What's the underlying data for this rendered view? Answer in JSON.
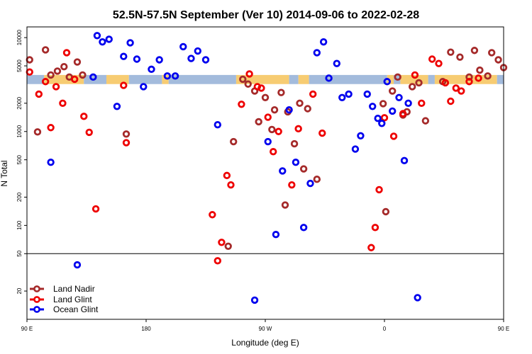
{
  "chart_data": {
    "type": "scatter",
    "title": "52.5N-57.5N September (Ver 10)   2014-09-06 to 2022-02-28",
    "xlabel": "Longitude (deg E)",
    "ylabel": "N Total",
    "xlim": [
      90,
      450
    ],
    "ylim_log": [
      10,
      13000
    ],
    "log_y": true,
    "x_ticks": [
      {
        "value": 90,
        "label": "90 E"
      },
      {
        "value": 180,
        "label": "180"
      },
      {
        "value": 270,
        "label": "90 W"
      },
      {
        "value": 360,
        "label": "0"
      },
      {
        "value": 450,
        "label": "90 E"
      }
    ],
    "y_ticks": [
      {
        "value": 20,
        "label": "20"
      },
      {
        "value": 50,
        "label": "50"
      },
      {
        "value": 100,
        "label": "100"
      },
      {
        "value": 200,
        "label": "200"
      },
      {
        "value": 500,
        "label": "500"
      },
      {
        "value": 1000,
        "label": "1000"
      },
      {
        "value": 2000,
        "label": "2000"
      },
      {
        "value": 5000,
        "label": "5000"
      },
      {
        "value": 10000,
        "label": "10000"
      }
    ],
    "reference_line": 50,
    "colors": {
      "land_nadir": "#a52a2a",
      "land_glint": "#ee0000",
      "ocean_glint": "#0000ee",
      "ocean_band": "#a3bbdc",
      "land_band": "#f7cc72"
    },
    "legend_position": "bottom-left",
    "series": [
      {
        "name": "Land Nadir",
        "color": "#a52a2a",
        "points": [
          {
            "x": 92,
            "y": 5800
          },
          {
            "x": 98,
            "y": 990
          },
          {
            "x": 104,
            "y": 7400
          },
          {
            "x": 108,
            "y": 4000
          },
          {
            "x": 113,
            "y": 4400
          },
          {
            "x": 118,
            "y": 4900
          },
          {
            "x": 122,
            "y": 3800
          },
          {
            "x": 128,
            "y": 5500
          },
          {
            "x": 132,
            "y": 4000
          },
          {
            "x": 165,
            "y": 940
          },
          {
            "x": 242,
            "y": 60
          },
          {
            "x": 246,
            "y": 780
          },
          {
            "x": 253,
            "y": 3600
          },
          {
            "x": 257,
            "y": 3200
          },
          {
            "x": 262,
            "y": 2700
          },
          {
            "x": 265,
            "y": 1270
          },
          {
            "x": 270,
            "y": 2300
          },
          {
            "x": 275,
            "y": 1050
          },
          {
            "x": 277,
            "y": 1700
          },
          {
            "x": 282,
            "y": 2600
          },
          {
            "x": 285,
            "y": 165
          },
          {
            "x": 287,
            "y": 1620
          },
          {
            "x": 292,
            "y": 740
          },
          {
            "x": 296,
            "y": 2000
          },
          {
            "x": 299,
            "y": 400
          },
          {
            "x": 302,
            "y": 1750
          },
          {
            "x": 309,
            "y": 310
          },
          {
            "x": 359,
            "y": 1980
          },
          {
            "x": 361,
            "y": 140
          },
          {
            "x": 366,
            "y": 2700
          },
          {
            "x": 370,
            "y": 3800
          },
          {
            "x": 374,
            "y": 1500
          },
          {
            "x": 377,
            "y": 1620
          },
          {
            "x": 381,
            "y": 3000
          },
          {
            "x": 386,
            "y": 3300
          },
          {
            "x": 391,
            "y": 1300
          },
          {
            "x": 404,
            "y": 3400
          },
          {
            "x": 410,
            "y": 7000
          },
          {
            "x": 417,
            "y": 6200
          },
          {
            "x": 424,
            "y": 3800
          },
          {
            "x": 428,
            "y": 7300
          },
          {
            "x": 432,
            "y": 4500
          },
          {
            "x": 438,
            "y": 3900
          },
          {
            "x": 441,
            "y": 6900
          },
          {
            "x": 446,
            "y": 5800
          },
          {
            "x": 450,
            "y": 4800
          }
        ]
      },
      {
        "name": "Land Glint",
        "color": "#ee0000",
        "points": [
          {
            "x": 92,
            "y": 4300
          },
          {
            "x": 99,
            "y": 2500
          },
          {
            "x": 104,
            "y": 3400
          },
          {
            "x": 108,
            "y": 1100
          },
          {
            "x": 112,
            "y": 3000
          },
          {
            "x": 117,
            "y": 2000
          },
          {
            "x": 120,
            "y": 6900
          },
          {
            "x": 126,
            "y": 3600
          },
          {
            "x": 133,
            "y": 1450
          },
          {
            "x": 137,
            "y": 980
          },
          {
            "x": 142,
            "y": 150
          },
          {
            "x": 163,
            "y": 3100
          },
          {
            "x": 165,
            "y": 760
          },
          {
            "x": 230,
            "y": 130
          },
          {
            "x": 234,
            "y": 42
          },
          {
            "x": 237,
            "y": 66
          },
          {
            "x": 241,
            "y": 340
          },
          {
            "x": 244,
            "y": 270
          },
          {
            "x": 252,
            "y": 1950
          },
          {
            "x": 258,
            "y": 4100
          },
          {
            "x": 264,
            "y": 3000
          },
          {
            "x": 267,
            "y": 2900
          },
          {
            "x": 272,
            "y": 1420
          },
          {
            "x": 276,
            "y": 610
          },
          {
            "x": 280,
            "y": 1000
          },
          {
            "x": 290,
            "y": 270
          },
          {
            "x": 295,
            "y": 1070
          },
          {
            "x": 306,
            "y": 2500
          },
          {
            "x": 313,
            "y": 960
          },
          {
            "x": 350,
            "y": 58
          },
          {
            "x": 353,
            "y": 95
          },
          {
            "x": 356,
            "y": 240
          },
          {
            "x": 360,
            "y": 1400
          },
          {
            "x": 367,
            "y": 890
          },
          {
            "x": 374,
            "y": 1550
          },
          {
            "x": 383,
            "y": 4000
          },
          {
            "x": 388,
            "y": 2000
          },
          {
            "x": 396,
            "y": 5900
          },
          {
            "x": 401,
            "y": 5300
          },
          {
            "x": 406,
            "y": 3300
          },
          {
            "x": 410,
            "y": 2100
          },
          {
            "x": 414,
            "y": 2900
          },
          {
            "x": 418,
            "y": 2700
          },
          {
            "x": 424,
            "y": 3400
          },
          {
            "x": 431,
            "y": 3700
          }
        ]
      },
      {
        "name": "Ocean Glint",
        "color": "#0000ee",
        "points": [
          {
            "x": 108,
            "y": 470
          },
          {
            "x": 128,
            "y": 38
          },
          {
            "x": 140,
            "y": 3800
          },
          {
            "x": 143,
            "y": 10500
          },
          {
            "x": 147,
            "y": 9000
          },
          {
            "x": 152,
            "y": 9600
          },
          {
            "x": 158,
            "y": 1850
          },
          {
            "x": 163,
            "y": 6300
          },
          {
            "x": 168,
            "y": 8800
          },
          {
            "x": 173,
            "y": 5900
          },
          {
            "x": 178,
            "y": 3000
          },
          {
            "x": 184,
            "y": 4600
          },
          {
            "x": 190,
            "y": 5800
          },
          {
            "x": 196,
            "y": 3900
          },
          {
            "x": 202,
            "y": 3900
          },
          {
            "x": 208,
            "y": 8000
          },
          {
            "x": 214,
            "y": 6000
          },
          {
            "x": 219,
            "y": 7200
          },
          {
            "x": 225,
            "y": 5800
          },
          {
            "x": 234,
            "y": 1180
          },
          {
            "x": 262,
            "y": 16
          },
          {
            "x": 272,
            "y": 780
          },
          {
            "x": 278,
            "y": 80
          },
          {
            "x": 283,
            "y": 380
          },
          {
            "x": 288,
            "y": 1700
          },
          {
            "x": 293,
            "y": 470
          },
          {
            "x": 299,
            "y": 95
          },
          {
            "x": 304,
            "y": 280
          },
          {
            "x": 309,
            "y": 6900
          },
          {
            "x": 314,
            "y": 9000
          },
          {
            "x": 318,
            "y": 3700
          },
          {
            "x": 324,
            "y": 5300
          },
          {
            "x": 328,
            "y": 2300
          },
          {
            "x": 333,
            "y": 2500
          },
          {
            "x": 338,
            "y": 650
          },
          {
            "x": 342,
            "y": 900
          },
          {
            "x": 347,
            "y": 2500
          },
          {
            "x": 351,
            "y": 1850
          },
          {
            "x": 355,
            "y": 1380
          },
          {
            "x": 358,
            "y": 1220
          },
          {
            "x": 362,
            "y": 3400
          },
          {
            "x": 366,
            "y": 1650
          },
          {
            "x": 371,
            "y": 2300
          },
          {
            "x": 375,
            "y": 490
          },
          {
            "x": 378,
            "y": 2000
          },
          {
            "x": 385,
            "y": 17
          }
        ]
      }
    ],
    "band_segments": [
      {
        "from": 90,
        "to": 103,
        "kind": "ocean"
      },
      {
        "from": 103,
        "to": 133,
        "kind": "land"
      },
      {
        "from": 133,
        "to": 150,
        "kind": "ocean"
      },
      {
        "from": 150,
        "to": 167,
        "kind": "land"
      },
      {
        "from": 167,
        "to": 192,
        "kind": "ocean"
      },
      {
        "from": 192,
        "to": 197,
        "kind": "land"
      },
      {
        "from": 197,
        "to": 248,
        "kind": "ocean"
      },
      {
        "from": 248,
        "to": 288,
        "kind": "land"
      },
      {
        "from": 288,
        "to": 295,
        "kind": "ocean"
      },
      {
        "from": 295,
        "to": 303,
        "kind": "land"
      },
      {
        "from": 303,
        "to": 362,
        "kind": "ocean"
      },
      {
        "from": 362,
        "to": 367,
        "kind": "land"
      },
      {
        "from": 367,
        "to": 372,
        "kind": "ocean"
      },
      {
        "from": 372,
        "to": 393,
        "kind": "land"
      },
      {
        "from": 393,
        "to": 398,
        "kind": "ocean"
      },
      {
        "from": 398,
        "to": 423,
        "kind": "land"
      },
      {
        "from": 423,
        "to": 445,
        "kind": "land"
      },
      {
        "from": 445,
        "to": 450,
        "kind": "ocean"
      }
    ],
    "band_y_range": [
      3200,
      4000
    ]
  }
}
